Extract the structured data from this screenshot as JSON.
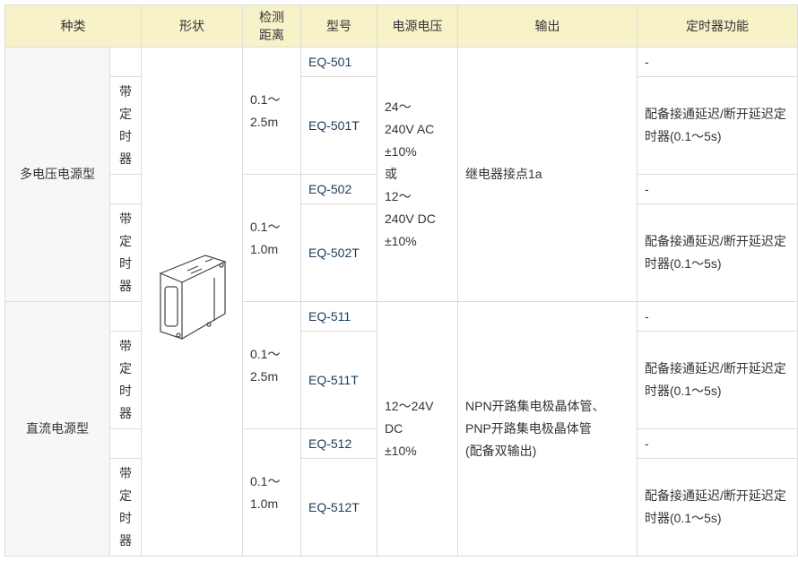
{
  "headers": {
    "type": "种类",
    "shape": "形状",
    "distance": "检测\n距离",
    "model": "型号",
    "voltage": "电源电压",
    "output": "输出",
    "timer": "定时器功能"
  },
  "groups": [
    {
      "type": "多电压电源型",
      "voltage": "24～\n240V AC\n±10%\n或\n12～\n240V DC\n±10%",
      "output": "继电器接点1a"
    },
    {
      "type": "直流电源型",
      "voltage": "12～24V\nDC\n±10%",
      "output": "NPN开路集电极晶体管、\nPNP开路集电极晶体管\n(配备双输出)"
    }
  ],
  "timer_label": "带\n定\n时\n器",
  "distances": [
    "0.1～\n2.5m",
    "0.1～\n1.0m",
    "0.1～\n2.5m",
    "0.1～\n1.0m"
  ],
  "rows": [
    {
      "model": "EQ-501",
      "timer": "-"
    },
    {
      "model": "EQ-501T",
      "timer": "配备接通延迟/断开延迟定时器(0.1～5s)"
    },
    {
      "model": "EQ-502",
      "timer": "-"
    },
    {
      "model": "EQ-502T",
      "timer": "配备接通延迟/断开延迟定时器(0.1～5s)"
    },
    {
      "model": "EQ-511",
      "timer": "-"
    },
    {
      "model": "EQ-511T",
      "timer": "配备接通延迟/断开延迟定时器(0.1～5s)"
    },
    {
      "model": "EQ-512",
      "timer": "-"
    },
    {
      "model": "EQ-512T",
      "timer": "配备接通延迟/断开延迟定时器(0.1～5s)"
    }
  ],
  "image_icon": "photoelectric-sensor-image",
  "colors": {
    "header_bg": "#f8f2c9",
    "border": "#dcdcdc",
    "category_bg": "#f7f7f7"
  }
}
